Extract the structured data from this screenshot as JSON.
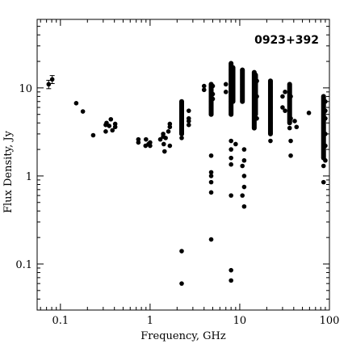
{
  "chart_data": {
    "type": "scatter",
    "title": "",
    "annotation": "0923+392",
    "xlabel": "Frequency, GHz",
    "ylabel": "Flux Density, Jy",
    "x_scale": "log",
    "y_scale": "log",
    "xlim": [
      0.055,
      100
    ],
    "ylim": [
      0.03,
      60
    ],
    "grid": false,
    "legend": "none",
    "x_ticks": [
      {
        "value": 0.1,
        "label": "0.1"
      },
      {
        "value": 1,
        "label": "1"
      },
      {
        "value": 10,
        "label": "10"
      },
      {
        "value": 100,
        "label": "100"
      }
    ],
    "y_ticks": [
      {
        "value": 0.1,
        "label": "0.1"
      },
      {
        "value": 1,
        "label": "1"
      },
      {
        "value": 10,
        "label": "10"
      }
    ],
    "marker_color": "#000000",
    "error_bar_points": [
      {
        "x": 0.074,
        "y": 11.0,
        "yerr_low": 1.2,
        "yerr_high": 1.2
      },
      {
        "x": 0.081,
        "y": 12.5,
        "yerr_low": 1.3,
        "yerr_high": 1.3
      }
    ],
    "series": [
      {
        "points": [
          [
            0.15,
            6.7
          ],
          [
            0.178,
            5.4
          ],
          [
            0.232,
            2.9
          ],
          [
            0.32,
            3.2
          ],
          [
            0.32,
            3.8
          ],
          [
            0.327,
            4.0
          ],
          [
            0.35,
            3.7
          ],
          [
            0.365,
            4.4
          ],
          [
            0.38,
            3.3
          ],
          [
            0.408,
            3.6
          ],
          [
            0.408,
            3.9
          ],
          [
            0.74,
            2.4
          ],
          [
            0.74,
            2.6
          ],
          [
            0.89,
            2.2
          ],
          [
            0.9,
            2.6
          ],
          [
            0.96,
            2.3
          ],
          [
            1.0,
            2.2
          ],
          [
            1.0,
            2.4
          ],
          [
            1.3,
            2.6
          ],
          [
            1.4,
            2.8
          ],
          [
            1.4,
            3.0
          ],
          [
            1.42,
            2.3
          ],
          [
            1.45,
            1.9
          ],
          [
            1.49,
            2.7
          ],
          [
            1.6,
            3.2
          ],
          [
            1.66,
            3.6
          ],
          [
            1.66,
            3.9
          ],
          [
            1.66,
            2.2
          ],
          [
            2.25,
            7.0
          ],
          [
            2.25,
            6.0
          ],
          [
            2.25,
            5.0
          ],
          [
            2.25,
            4.2
          ],
          [
            2.25,
            3.5
          ],
          [
            2.25,
            3.0
          ],
          [
            2.25,
            2.7
          ],
          [
            2.25,
            0.14
          ],
          [
            2.25,
            0.06
          ],
          [
            2.7,
            5.5
          ],
          [
            2.7,
            4.5
          ],
          [
            2.7,
            4.2
          ],
          [
            2.7,
            3.8
          ],
          [
            4.0,
            9.5
          ],
          [
            4.0,
            10.5
          ],
          [
            4.8,
            11.0
          ],
          [
            4.8,
            10.0
          ],
          [
            4.8,
            9.0
          ],
          [
            4.8,
            8.0
          ],
          [
            4.8,
            7.0
          ],
          [
            4.8,
            6.0
          ],
          [
            4.8,
            5.0
          ],
          [
            4.8,
            1.7
          ],
          [
            4.8,
            1.1
          ],
          [
            4.8,
            1.0
          ],
          [
            4.8,
            0.85
          ],
          [
            4.8,
            0.65
          ],
          [
            4.8,
            0.19
          ],
          [
            5.0,
            10.5
          ],
          [
            5.0,
            8.5
          ],
          [
            5.0,
            7.5
          ],
          [
            7.0,
            11.0
          ],
          [
            7.0,
            9.0
          ],
          [
            8.0,
            19.0
          ],
          [
            8.0,
            16.0
          ],
          [
            8.0,
            14.0
          ],
          [
            8.0,
            12.0
          ],
          [
            8.0,
            10.0
          ],
          [
            8.0,
            9.0
          ],
          [
            8.0,
            8.0
          ],
          [
            8.0,
            7.0
          ],
          [
            8.0,
            6.0
          ],
          [
            8.0,
            5.0
          ],
          [
            8.0,
            2.5
          ],
          [
            8.0,
            2.0
          ],
          [
            8.0,
            1.6
          ],
          [
            8.0,
            1.35
          ],
          [
            8.0,
            0.6
          ],
          [
            8.0,
            0.085
          ],
          [
            8.0,
            0.065
          ],
          [
            8.4,
            17.0
          ],
          [
            8.4,
            13.0
          ],
          [
            8.4,
            9.5
          ],
          [
            8.4,
            7.5
          ],
          [
            9.0,
            2.3
          ],
          [
            10.7,
            16.0
          ],
          [
            10.7,
            13.0
          ],
          [
            10.7,
            11.0
          ],
          [
            10.7,
            9.0
          ],
          [
            10.7,
            7.0
          ],
          [
            10.7,
            1.3
          ],
          [
            10.7,
            0.6
          ],
          [
            11.2,
            2.0
          ],
          [
            11.2,
            1.5
          ],
          [
            11.2,
            1.0
          ],
          [
            11.2,
            0.75
          ],
          [
            11.2,
            0.45
          ],
          [
            14.5,
            15.0
          ],
          [
            14.5,
            13.0
          ],
          [
            14.5,
            11.0
          ],
          [
            14.5,
            9.0
          ],
          [
            14.5,
            7.0
          ],
          [
            14.5,
            5.0
          ],
          [
            14.5,
            3.5
          ],
          [
            15.0,
            14.0
          ],
          [
            15.0,
            10.0
          ],
          [
            15.0,
            6.0
          ],
          [
            15.5,
            12.0
          ],
          [
            15.5,
            8.0
          ],
          [
            15.5,
            4.5
          ],
          [
            22.0,
            12.0
          ],
          [
            22.0,
            10.0
          ],
          [
            22.0,
            8.0
          ],
          [
            22.0,
            6.0
          ],
          [
            22.0,
            4.0
          ],
          [
            22.0,
            2.5
          ],
          [
            30.0,
            8.0
          ],
          [
            30.0,
            6.0
          ],
          [
            32.0,
            9.0
          ],
          [
            32.0,
            5.5
          ],
          [
            36.0,
            11.0
          ],
          [
            36.0,
            9.0
          ],
          [
            36.0,
            7.0
          ],
          [
            36.0,
            5.0
          ],
          [
            36.0,
            3.5
          ],
          [
            37.0,
            8.0
          ],
          [
            37.0,
            4.5
          ],
          [
            37.0,
            2.5
          ],
          [
            37.0,
            1.7
          ],
          [
            41.0,
            4.2
          ],
          [
            43.0,
            3.6
          ],
          [
            59.0,
            5.2
          ],
          [
            86.0,
            8.0
          ],
          [
            86.0,
            6.5
          ],
          [
            86.0,
            5.0
          ],
          [
            86.0,
            4.0
          ],
          [
            86.0,
            3.5
          ],
          [
            86.0,
            3.0
          ],
          [
            86.0,
            2.5
          ],
          [
            86.0,
            2.0
          ],
          [
            86.0,
            1.6
          ],
          [
            86.0,
            1.3
          ],
          [
            86.0,
            0.85
          ],
          [
            90.0,
            7.0
          ],
          [
            90.0,
            5.5
          ],
          [
            90.0,
            4.5
          ],
          [
            90.0,
            3.0
          ],
          [
            90.0,
            2.2
          ],
          [
            90.0,
            1.5
          ]
        ]
      }
    ],
    "dense_columns": [
      {
        "x": 4.8,
        "y_low": 5.0,
        "y_high": 11.0
      },
      {
        "x": 8.0,
        "y_low": 5.0,
        "y_high": 19.0
      },
      {
        "x": 8.4,
        "y_low": 7.0,
        "y_high": 17.0
      },
      {
        "x": 10.7,
        "y_low": 7.0,
        "y_high": 16.0
      },
      {
        "x": 14.5,
        "y_low": 3.5,
        "y_high": 15.0
      },
      {
        "x": 15.0,
        "y_low": 5.0,
        "y_high": 14.0
      },
      {
        "x": 22.0,
        "y_low": 3.0,
        "y_high": 12.0
      },
      {
        "x": 36.0,
        "y_low": 4.0,
        "y_high": 11.0
      },
      {
        "x": 86.0,
        "y_low": 1.6,
        "y_high": 8.0
      },
      {
        "x": 2.25,
        "y_low": 3.0,
        "y_high": 7.0
      }
    ]
  }
}
